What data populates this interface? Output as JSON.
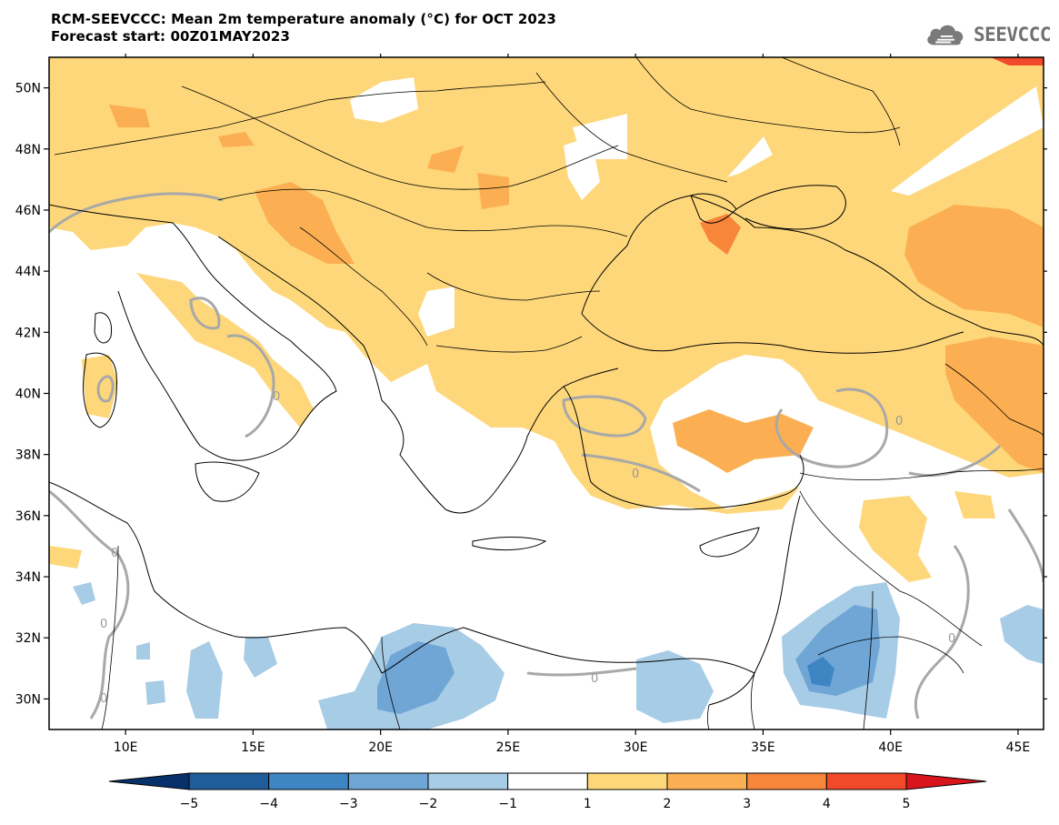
{
  "header": {
    "title": "RCM-SEEVCCC: Mean 2m temperature anomaly (°C) for OCT 2023",
    "subtitle": "Forecast start: 00Z01MAY2023"
  },
  "logo": {
    "text": "SEEVCCC",
    "icon": "cloud-icon"
  },
  "map": {
    "type": "heatmap",
    "lon_range": [
      7,
      46
    ],
    "lat_range": [
      29,
      51
    ],
    "lon_ticks": [
      "10E",
      "15E",
      "20E",
      "25E",
      "30E",
      "35E",
      "40E",
      "45E"
    ],
    "lat_ticks": [
      "50N",
      "48N",
      "46N",
      "44N",
      "42N",
      "40N",
      "38N",
      "36N",
      "34N",
      "32N",
      "30N"
    ],
    "contour_label": "0"
  },
  "colorbar": {
    "labels": [
      "−5",
      "−4",
      "−3",
      "−2",
      "−1",
      "1",
      "2",
      "3",
      "4",
      "5"
    ],
    "colors": [
      "#08306b",
      "#1f5d9a",
      "#3f85c4",
      "#6fa6d6",
      "#a7cce6",
      "#ffffff",
      "#fdd77a",
      "#fbaf52",
      "#f7853a",
      "#f14a2a",
      "#d8141c"
    ]
  }
}
